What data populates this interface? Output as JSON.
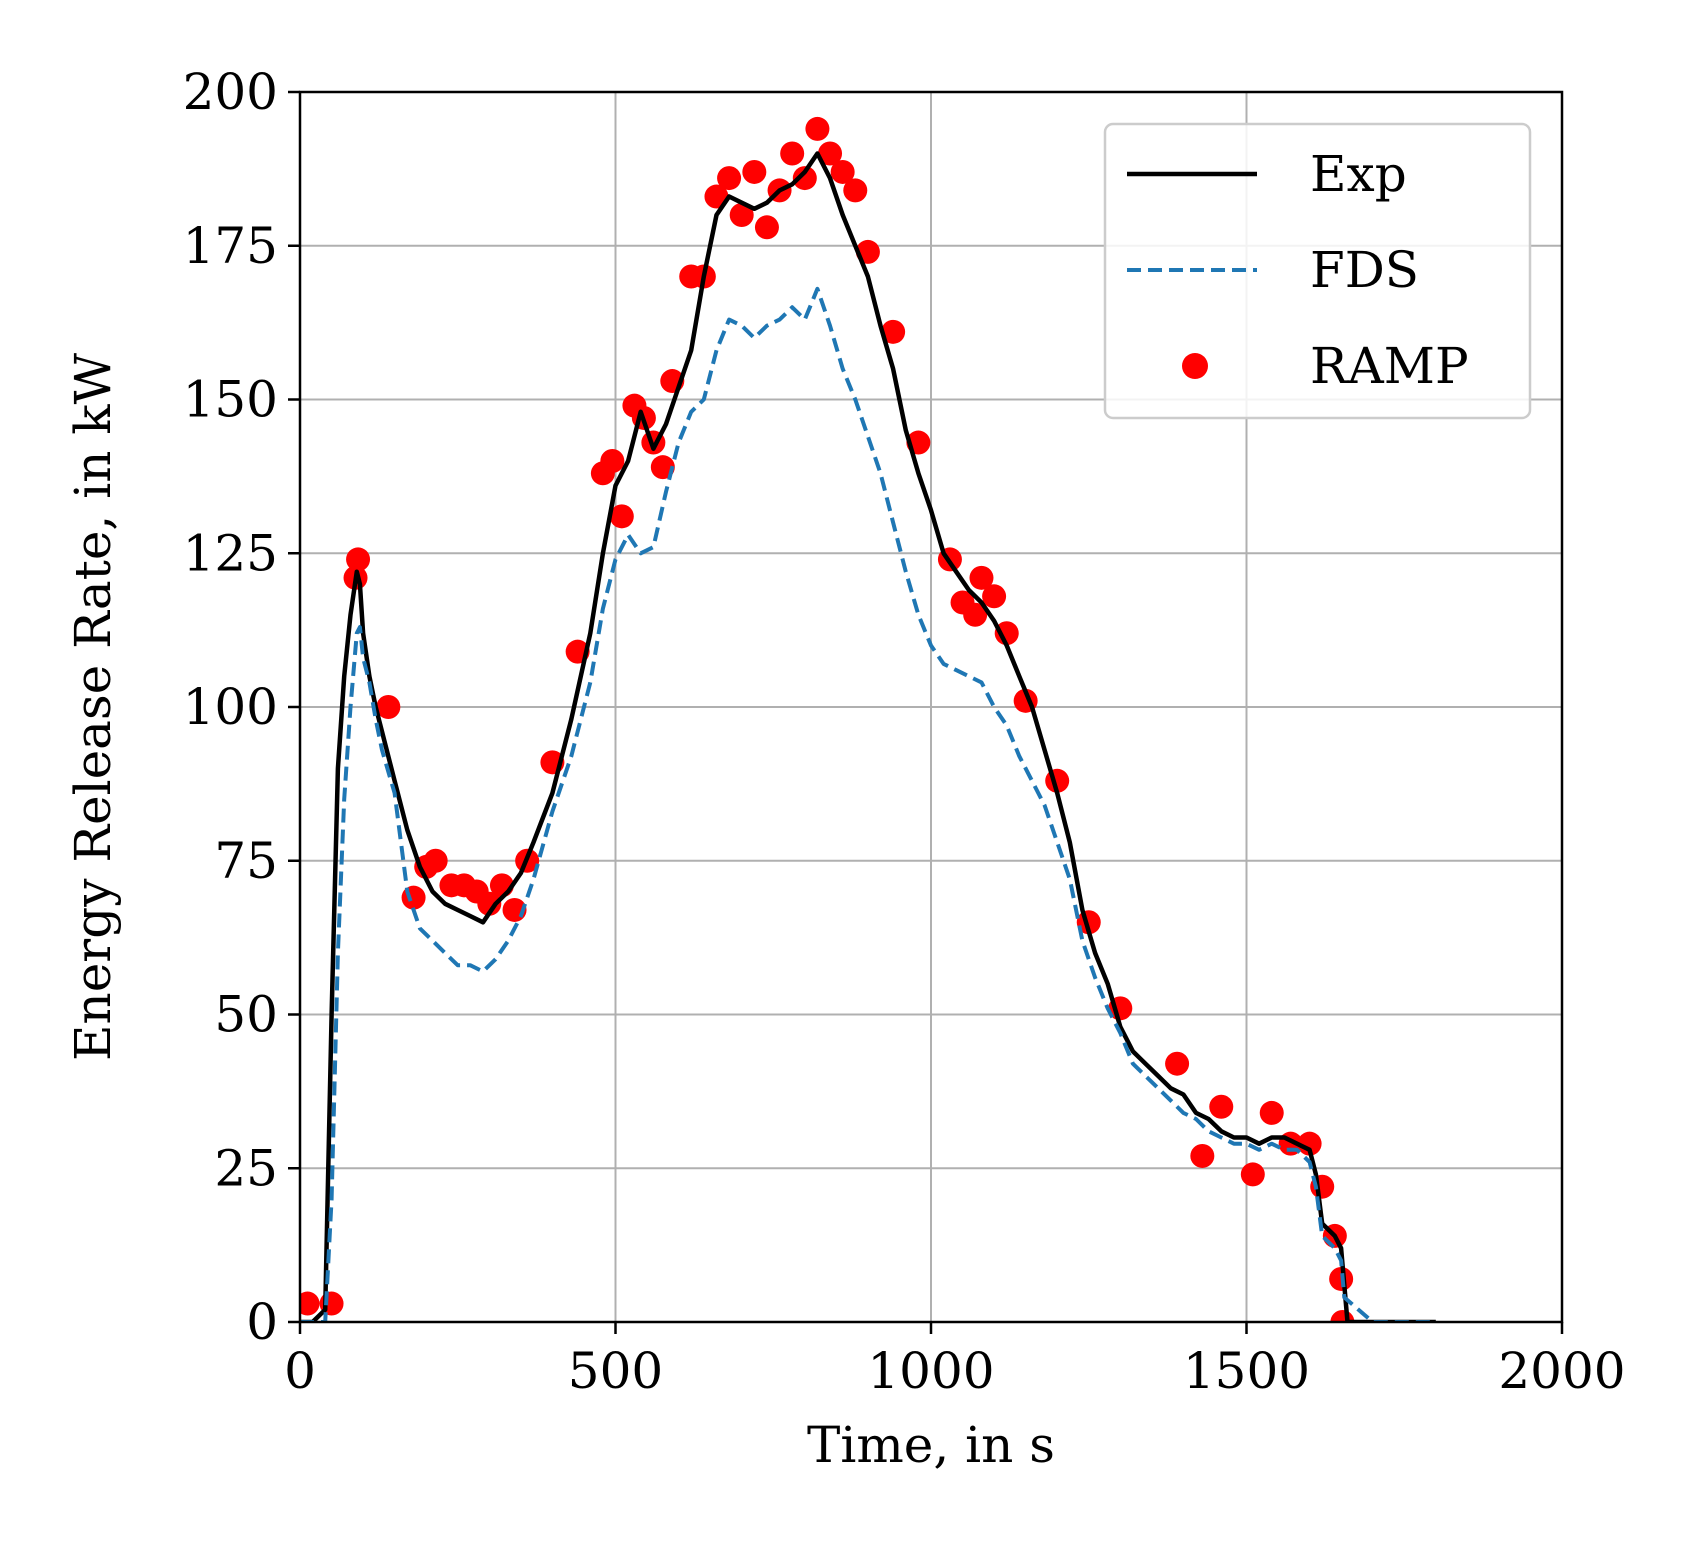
{
  "chart_data": {
    "type": "line",
    "title": "",
    "xlabel": "Time, in s",
    "ylabel": "Energy Release Rate, in kW",
    "xlim": [
      0,
      2000
    ],
    "ylim": [
      0,
      200
    ],
    "xticks": [
      0,
      500,
      1000,
      1500,
      2000
    ],
    "yticks": [
      0,
      25,
      50,
      75,
      100,
      125,
      150,
      175,
      200
    ],
    "grid": true,
    "legend_position": "top-right",
    "series": [
      {
        "name": "Exp",
        "style": "solid",
        "color": "#000000",
        "x": [
          0,
          20,
          40,
          50,
          60,
          70,
          80,
          90,
          95,
          100,
          110,
          120,
          130,
          150,
          170,
          190,
          210,
          230,
          250,
          270,
          290,
          310,
          330,
          350,
          370,
          400,
          430,
          460,
          480,
          500,
          520,
          540,
          560,
          580,
          600,
          620,
          640,
          660,
          680,
          700,
          720,
          740,
          760,
          780,
          800,
          820,
          840,
          860,
          880,
          900,
          920,
          940,
          960,
          980,
          1000,
          1020,
          1040,
          1060,
          1080,
          1100,
          1120,
          1140,
          1160,
          1180,
          1200,
          1220,
          1240,
          1260,
          1280,
          1300,
          1320,
          1340,
          1360,
          1380,
          1400,
          1420,
          1440,
          1460,
          1480,
          1500,
          1520,
          1540,
          1560,
          1580,
          1600,
          1610,
          1620,
          1640,
          1650,
          1660,
          1700,
          1800
        ],
        "y": [
          0,
          0,
          2,
          50,
          90,
          105,
          115,
          122,
          120,
          112,
          105,
          100,
          96,
          88,
          80,
          74,
          70,
          68,
          67,
          66,
          65,
          68,
          70,
          73,
          78,
          86,
          98,
          112,
          125,
          136,
          140,
          148,
          142,
          146,
          152,
          158,
          170,
          180,
          183,
          182,
          181,
          182,
          184,
          185,
          187,
          190,
          186,
          180,
          175,
          170,
          162,
          155,
          145,
          138,
          132,
          125,
          122,
          119,
          117,
          114,
          110,
          105,
          100,
          93,
          86,
          78,
          67,
          60,
          55,
          48,
          44,
          42,
          40,
          38,
          37,
          34,
          33,
          31,
          30,
          30,
          29,
          30,
          30,
          29,
          28,
          24,
          16,
          14,
          12,
          0,
          0,
          0
        ]
      },
      {
        "name": "FDS",
        "style": "dashed",
        "color": "#1f77b4",
        "x": [
          0,
          20,
          40,
          50,
          60,
          70,
          80,
          90,
          95,
          100,
          110,
          120,
          130,
          150,
          170,
          190,
          210,
          230,
          250,
          270,
          290,
          310,
          330,
          350,
          370,
          400,
          430,
          460,
          480,
          500,
          520,
          540,
          560,
          580,
          600,
          620,
          640,
          660,
          680,
          700,
          720,
          740,
          760,
          780,
          800,
          820,
          840,
          860,
          880,
          900,
          920,
          940,
          960,
          980,
          1000,
          1020,
          1040,
          1060,
          1080,
          1100,
          1120,
          1140,
          1160,
          1180,
          1200,
          1220,
          1240,
          1260,
          1280,
          1300,
          1320,
          1340,
          1360,
          1380,
          1400,
          1420,
          1440,
          1460,
          1480,
          1500,
          1520,
          1540,
          1560,
          1580,
          1600,
          1610,
          1620,
          1640,
          1650,
          1655,
          1700,
          1800
        ],
        "y": [
          0,
          0,
          0,
          20,
          60,
          85,
          100,
          112,
          113,
          108,
          104,
          98,
          93,
          86,
          70,
          64,
          62,
          60,
          58,
          58,
          57,
          59,
          62,
          66,
          72,
          83,
          92,
          104,
          116,
          124,
          128,
          125,
          126,
          135,
          143,
          148,
          150,
          158,
          163,
          162,
          160,
          162,
          163,
          165,
          163,
          168,
          162,
          155,
          150,
          144,
          138,
          130,
          122,
          115,
          110,
          107,
          106,
          105,
          104,
          100,
          97,
          92,
          88,
          84,
          78,
          72,
          62,
          56,
          51,
          47,
          42,
          40,
          38,
          36,
          34,
          33,
          31,
          30,
          29,
          29,
          28,
          29,
          28,
          28,
          26,
          22,
          14,
          12,
          10,
          4,
          0,
          0
        ]
      },
      {
        "name": "RAMP",
        "style": "markers",
        "color": "#ff0000",
        "x": [
          12,
          50,
          88,
          92,
          140,
          180,
          200,
          215,
          240,
          260,
          280,
          300,
          320,
          340,
          360,
          400,
          440,
          480,
          495,
          510,
          530,
          545,
          560,
          575,
          590,
          620,
          640,
          660,
          680,
          700,
          720,
          740,
          760,
          780,
          800,
          820,
          840,
          860,
          880,
          900,
          940,
          980,
          1030,
          1050,
          1070,
          1080,
          1100,
          1120,
          1150,
          1200,
          1250,
          1300,
          1390,
          1430,
          1460,
          1510,
          1540,
          1570,
          1600,
          1620,
          1640,
          1650,
          1652
        ],
        "y": [
          3,
          3,
          121,
          124,
          100,
          69,
          74,
          75,
          71,
          71,
          70,
          68,
          71,
          67,
          75,
          91,
          109,
          138,
          140,
          131,
          149,
          147,
          143,
          139,
          153,
          170,
          170,
          183,
          186,
          180,
          187,
          178,
          184,
          190,
          186,
          194,
          190,
          187,
          184,
          174,
          161,
          143,
          124,
          117,
          115,
          121,
          118,
          112,
          101,
          88,
          65,
          51,
          42,
          27,
          35,
          24,
          34,
          29,
          29,
          22,
          14,
          7,
          0
        ]
      }
    ]
  }
}
